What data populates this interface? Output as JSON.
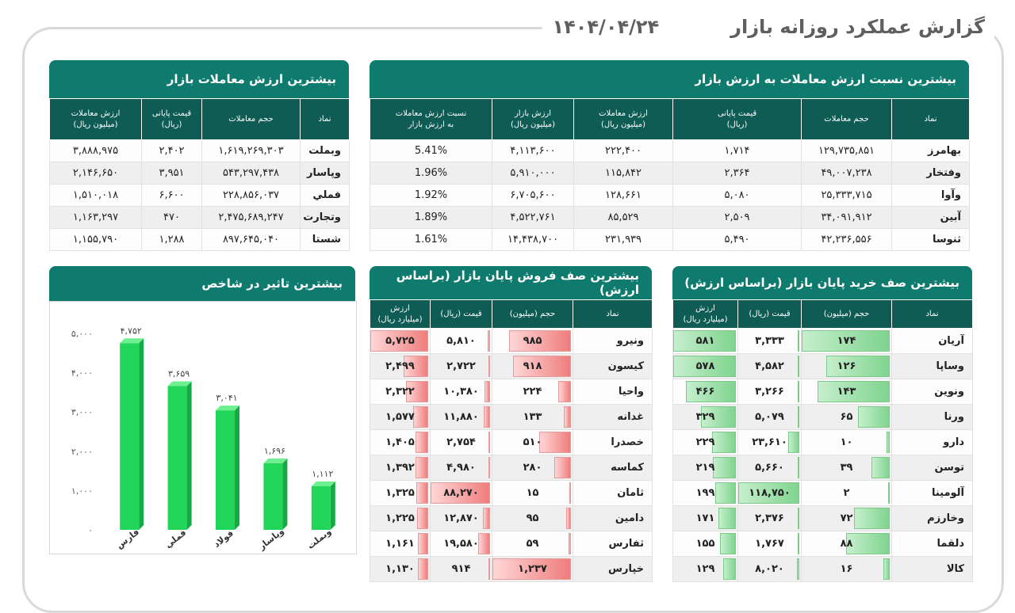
{
  "header": {
    "title": "گزارش عملکرد روزانه بازار",
    "date": "۱۴۰۴/۰۴/۲۴"
  },
  "ratio_panel": {
    "title": "بیشترین نسبت ارزش معاملات به ارزش بازار",
    "headers": [
      {
        "l1": "نماد",
        "l2": ""
      },
      {
        "l1": "حجم معاملات",
        "l2": ""
      },
      {
        "l1": "قیمت پایانی",
        "l2": "(ریال)"
      },
      {
        "l1": "ارزش معاملات",
        "l2": "(میلیون ریال)"
      },
      {
        "l1": "ارزش بازار",
        "l2": "(میلیون ریال)"
      },
      {
        "l1": "نسبت ارزش معاملات",
        "l2": "به ارزش بازار"
      }
    ],
    "rows": [
      [
        "بهامرز",
        "۱۲۹,۷۳۵,۸۵۱",
        "۱,۷۱۴",
        "۲۲۲,۴۰۰",
        "۴,۱۱۳,۶۰۰",
        "5.41%"
      ],
      [
        "وفتخار",
        "۴۹,۰۰۷,۲۳۸",
        "۲,۳۶۴",
        "۱۱۵,۸۴۲",
        "۵,۹۱۰,۰۰۰",
        "1.96%"
      ],
      [
        "وآوا",
        "۲۵,۳۳۳,۷۱۵",
        "۵,۰۸۰",
        "۱۲۸,۶۶۱",
        "۶,۷۰۵,۶۰۰",
        "1.92%"
      ],
      [
        "آبین",
        "۳۴,۰۹۱,۹۱۲",
        "۲,۵۰۹",
        "۸۵,۵۲۹",
        "۴,۵۲۲,۷۶۱",
        "1.89%"
      ],
      [
        "ثنوسا",
        "۴۲,۲۳۶,۵۵۶",
        "۵,۴۹۰",
        "۲۳۱,۹۳۹",
        "۱۴,۴۳۸,۷۰۰",
        "1.61%"
      ]
    ]
  },
  "value_panel": {
    "title": "بیشترین ارزش معاملات بازار",
    "headers": [
      {
        "l1": "نماد",
        "l2": ""
      },
      {
        "l1": "حجم معاملات",
        "l2": ""
      },
      {
        "l1": "قیمت پایانی",
        "l2": "(ریال)"
      },
      {
        "l1": "ارزش معاملات",
        "l2": "(میلیون ریال)"
      }
    ],
    "rows": [
      [
        "وبملت",
        "۱,۶۱۹,۲۶۹,۳۰۳",
        "۲,۴۰۲",
        "۳,۸۸۸,۹۷۵"
      ],
      [
        "وپاسار",
        "۵۴۳,۲۹۷,۴۳۸",
        "۳,۹۵۱",
        "۲,۱۴۶,۶۵۰"
      ],
      [
        "فملي",
        "۲۲۸,۸۵۶,۰۳۷",
        "۶,۶۰۰",
        "۱,۵۱۰,۰۱۸"
      ],
      [
        "وتجارت",
        "۲,۴۷۵,۶۸۹,۲۴۷",
        "۴۷۰",
        "۱,۱۶۳,۲۹۷"
      ],
      [
        "شستا",
        "۸۹۷,۶۴۵,۰۴۰",
        "۱,۲۸۸",
        "۱,۱۵۵,۷۹۰"
      ]
    ]
  },
  "buy_panel": {
    "title": "بیشترین صف خرید پایان بازار (براساس ارزش)",
    "headers": [
      {
        "l1": "نماد",
        "l2": ""
      },
      {
        "l1": "حجم (میلیون)",
        "l2": ""
      },
      {
        "l1": "قیمت (ریال)",
        "l2": ""
      },
      {
        "l1": "ارزش",
        "l2": "(میلیارد ریال)"
      }
    ],
    "rows": [
      {
        "sym": "آریان",
        "vol": "۱۷۴",
        "price": "۳,۳۳۳",
        "value": "۵۸۱",
        "vol_n": 174,
        "price_n": 3333,
        "value_n": 581
      },
      {
        "sym": "وساپا",
        "vol": "۱۲۶",
        "price": "۴,۵۸۲",
        "value": "۵۷۸",
        "vol_n": 126,
        "price_n": 4582,
        "value_n": 578
      },
      {
        "sym": "ونوین",
        "vol": "۱۴۳",
        "price": "۳,۲۶۶",
        "value": "۴۶۶",
        "vol_n": 143,
        "price_n": 3266,
        "value_n": 466
      },
      {
        "sym": "ورنا",
        "vol": "۶۵",
        "price": "۵,۰۷۹",
        "value": "۳۲۹",
        "vol_n": 65,
        "price_n": 5079,
        "value_n": 329
      },
      {
        "sym": "دارو",
        "vol": "۱۰",
        "price": "۲۳,۶۱۰",
        "value": "۲۲۹",
        "vol_n": 10,
        "price_n": 23610,
        "value_n": 229
      },
      {
        "sym": "توسن",
        "vol": "۳۹",
        "price": "۵,۶۶۰",
        "value": "۲۱۹",
        "vol_n": 39,
        "price_n": 5660,
        "value_n": 219
      },
      {
        "sym": "آلومینا",
        "vol": "۲",
        "price": "۱۱۸,۷۵۰",
        "value": "۱۹۹",
        "vol_n": 2,
        "price_n": 118750,
        "value_n": 199
      },
      {
        "sym": "وخارزم",
        "vol": "۷۲",
        "price": "۲,۳۷۶",
        "value": "۱۷۱",
        "vol_n": 72,
        "price_n": 2376,
        "value_n": 171
      },
      {
        "sym": "دلقما",
        "vol": "۸۸",
        "price": "۱,۷۶۷",
        "value": "۱۵۵",
        "vol_n": 88,
        "price_n": 1767,
        "value_n": 155
      },
      {
        "sym": "کالا",
        "vol": "۱۶",
        "price": "۸,۰۲۰",
        "value": "۱۲۹",
        "vol_n": 16,
        "price_n": 8020,
        "value_n": 129
      }
    ]
  },
  "sell_panel": {
    "title": "بیشترین صف فروش پایان بازار (براساس ارزش)",
    "headers": [
      {
        "l1": "نماد",
        "l2": ""
      },
      {
        "l1": "حجم (میلیون)",
        "l2": ""
      },
      {
        "l1": "قیمت (ریال)",
        "l2": ""
      },
      {
        "l1": "ارزش",
        "l2": "(میلیارد ریال)"
      }
    ],
    "rows": [
      {
        "sym": "ونیرو",
        "vol": "۹۸۵",
        "price": "۵,۸۱۰",
        "value": "۵,۷۲۵",
        "vol_n": 985,
        "price_n": 5810,
        "value_n": 5725
      },
      {
        "sym": "کیسون",
        "vol": "۹۱۸",
        "price": "۲,۷۲۲",
        "value": "۲,۴۹۹",
        "vol_n": 918,
        "price_n": 2722,
        "value_n": 2499
      },
      {
        "sym": "واحیا",
        "vol": "۲۲۴",
        "price": "۱۰,۳۸۰",
        "value": "۲,۳۲۲",
        "vol_n": 224,
        "price_n": 10380,
        "value_n": 2322
      },
      {
        "sym": "غدانه",
        "vol": "۱۳۳",
        "price": "۱۱,۸۸۰",
        "value": "۱,۵۷۷",
        "vol_n": 133,
        "price_n": 11880,
        "value_n": 1577
      },
      {
        "sym": "خصدرا",
        "vol": "۵۱۰",
        "price": "۲,۷۵۴",
        "value": "۱,۴۰۵",
        "vol_n": 510,
        "price_n": 2754,
        "value_n": 1405
      },
      {
        "sym": "کماسه",
        "vol": "۲۸۰",
        "price": "۴,۹۸۰",
        "value": "۱,۳۹۲",
        "vol_n": 280,
        "price_n": 4980,
        "value_n": 1392
      },
      {
        "sym": "ثامان",
        "vol": "۱۵",
        "price": "۸۸,۲۷۰",
        "value": "۱,۳۲۵",
        "vol_n": 15,
        "price_n": 88270,
        "value_n": 1325
      },
      {
        "sym": "دامین",
        "vol": "۹۵",
        "price": "۱۲,۸۷۰",
        "value": "۱,۲۲۵",
        "vol_n": 95,
        "price_n": 12870,
        "value_n": 1225
      },
      {
        "sym": "ثفارس",
        "vol": "۵۹",
        "price": "۱۹,۵۸۰",
        "value": "۱,۱۶۱",
        "vol_n": 59,
        "price_n": 19580,
        "value_n": 1161
      },
      {
        "sym": "خپارس",
        "vol": "۱,۲۳۷",
        "price": "۹۱۴",
        "value": "۱,۱۳۰",
        "vol_n": 1237,
        "price_n": 914,
        "value_n": 1130
      }
    ]
  },
  "impact_panel": {
    "title": "بیشترین تاثیر در شاخص"
  },
  "chart_data": {
    "type": "bar",
    "title": "بیشترین تاثیر در شاخص",
    "categories": [
      "فارس",
      "فملي",
      "فولاد",
      "وپاسار",
      "وبملت"
    ],
    "values": [
      4752,
      3659,
      3041,
      1696,
      1112
    ],
    "value_labels": [
      "۴,۷۵۲",
      "۳,۶۵۹",
      "۳,۰۴۱",
      "۱,۶۹۶",
      "۱,۱۱۲"
    ],
    "ylim": [
      0,
      5000
    ],
    "yticks": [
      0,
      1000,
      2000,
      3000,
      4000,
      5000
    ],
    "ytick_labels": [
      "۰",
      "۱,۰۰۰",
      "۲,۰۰۰",
      "۳,۰۰۰",
      "۴,۰۰۰",
      "۵,۰۰۰"
    ],
    "grid": false,
    "bar_color": "#22d65a"
  },
  "colors": {
    "accent": "#0f7a6e",
    "header_dark": "#0f5c55",
    "buy": "#7fd48f",
    "sell": "#ef7d7d"
  }
}
